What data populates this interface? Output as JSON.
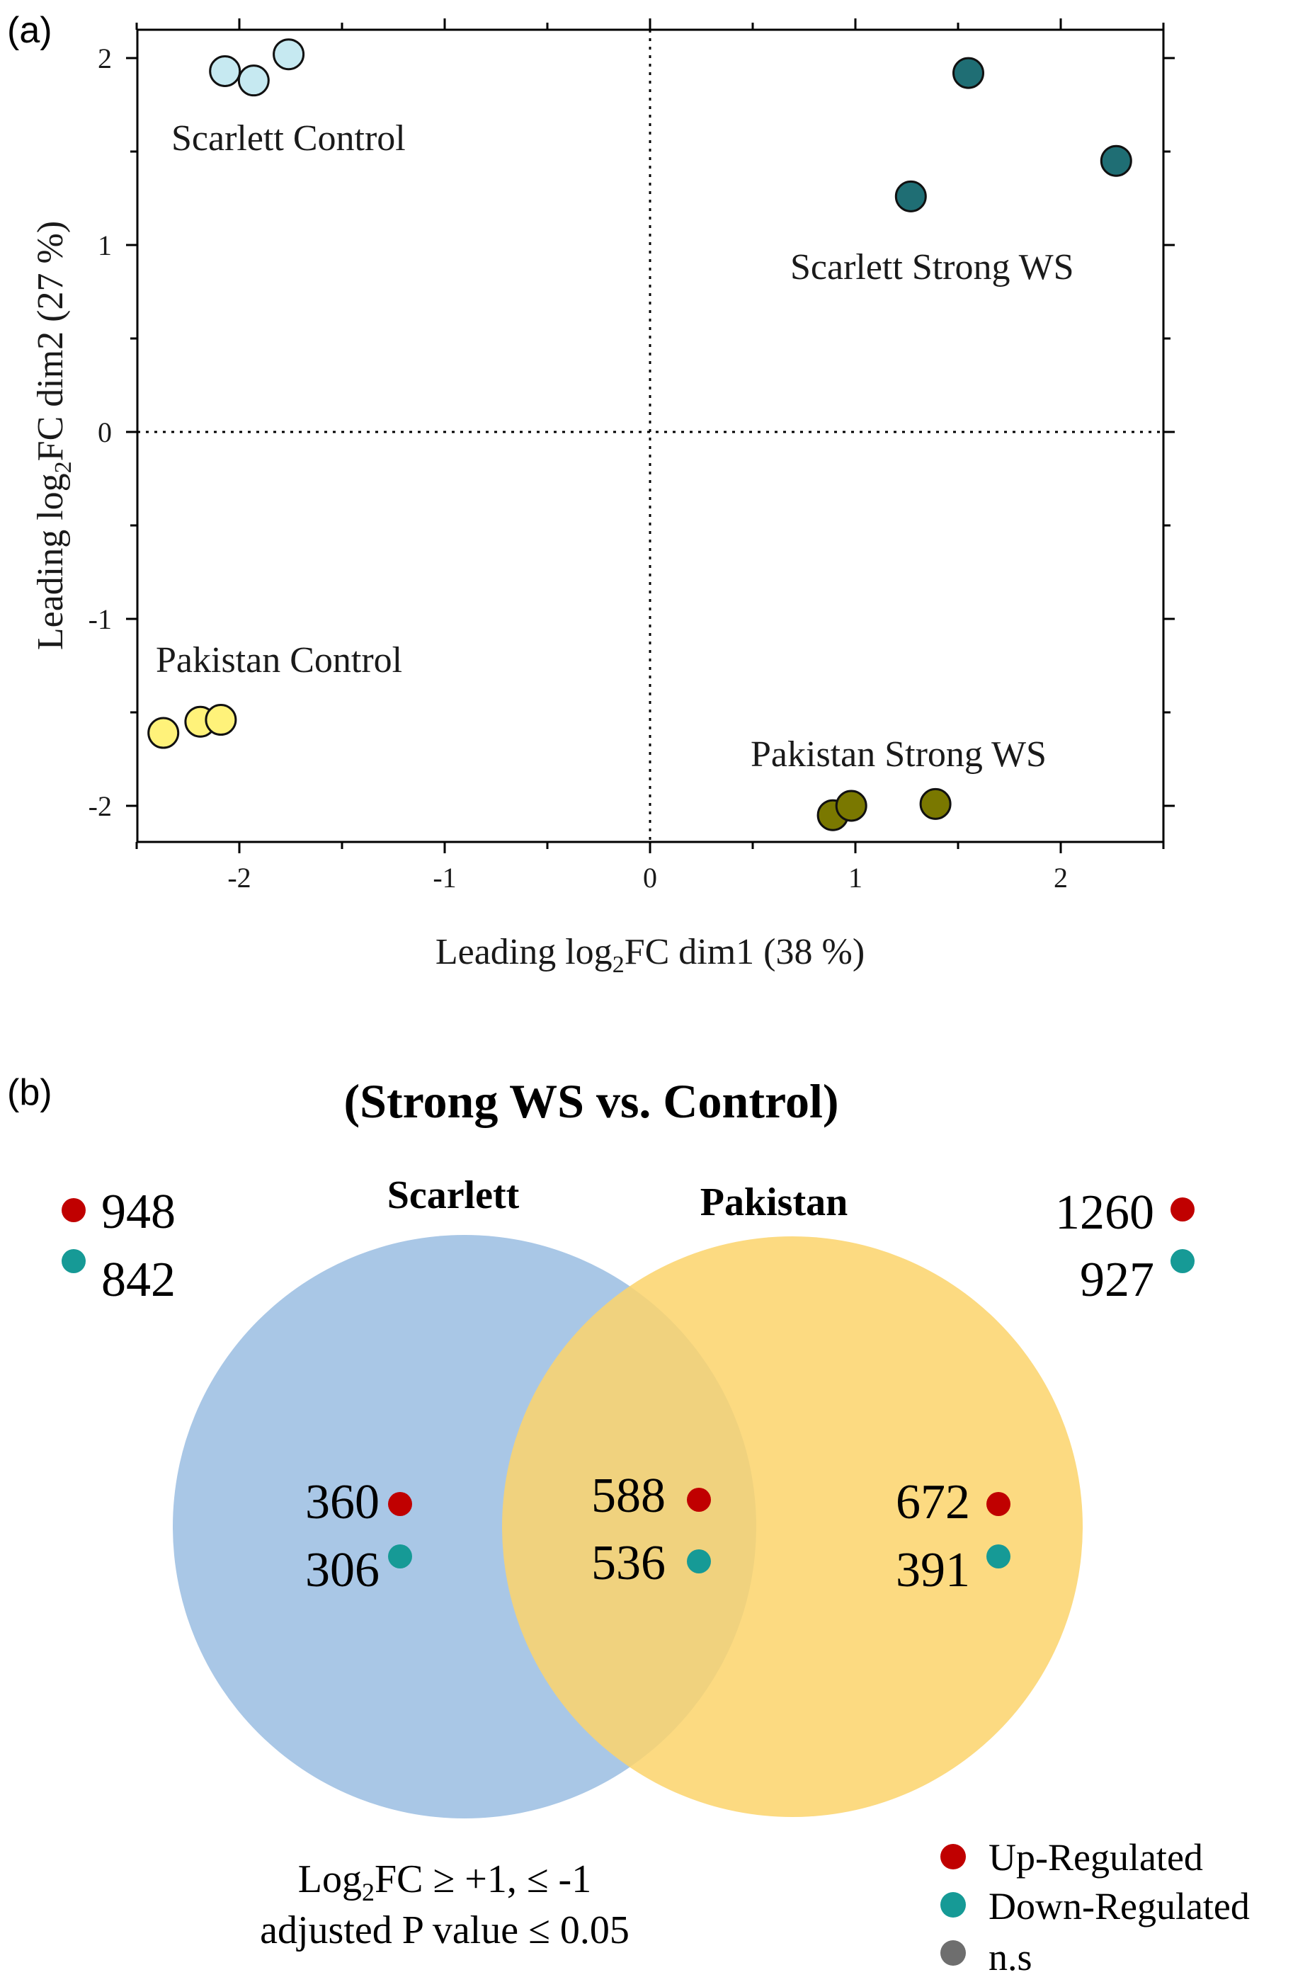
{
  "panel_a": {
    "label": "(a)",
    "xlabel_prefix": "Leading log",
    "xlabel_sub": "2",
    "xlabel_suffix": "FC dim1 (38 %)",
    "ylabel_prefix": "Leading log",
    "ylabel_sub": "2",
    "ylabel_suffix": "FC dim2 (27 %)",
    "group_labels": [
      "Scarlett Control",
      "Scarlett Strong WS",
      "Pakistan Control",
      "Pakistan Strong WS"
    ]
  },
  "panel_b": {
    "label": "(b)",
    "title": "(Strong WS vs. Control)",
    "scarlett_label": "Scarlett",
    "pakistan_label": "Pakistan",
    "scarlett_total_up": "948",
    "scarlett_total_down": "842",
    "pakistan_total_up": "1260",
    "pakistan_total_down": "927",
    "scarlett_only_up": "360",
    "scarlett_only_down": "306",
    "shared_up": "588",
    "shared_down": "536",
    "pakistan_only_up": "672",
    "pakistan_only_down": "391",
    "criteria_line1_prefix": "Log",
    "criteria_line1_sub": "2",
    "criteria_line1_suffix": "FC ≥ +1, ≤ -1",
    "criteria_line2": "adjusted P value ≤ 0.05",
    "legend": [
      "Up-Regulated",
      "Down-Regulated",
      "n.s"
    ],
    "colors": {
      "up": "#c00000",
      "down": "#169a96",
      "ns": "#6e6e6e",
      "scarlett_circle": "#a9c7e6",
      "pakistan_circle": "#fcd46c"
    }
  },
  "chart_data": {
    "type": "scatter",
    "xlabel": "Leading log2FC dim1 (38 %)",
    "ylabel": "Leading log2FC dim2 (27 %)",
    "xlim": [
      -2.5,
      2.5
    ],
    "ylim": [
      -2.2,
      2.1
    ],
    "xticks": [
      -2,
      -1,
      0,
      1,
      2
    ],
    "yticks": [
      -2,
      -1,
      0,
      1,
      2
    ],
    "reference_lines": {
      "x": 0,
      "y": 0,
      "style": "dotted"
    },
    "series": [
      {
        "name": "Scarlett Control",
        "color": "#c6e9f1",
        "points": [
          [
            -2.07,
            1.93
          ],
          [
            -1.93,
            1.88
          ],
          [
            -1.76,
            2.02
          ]
        ]
      },
      {
        "name": "Scarlett Strong WS",
        "color": "#1f6e74",
        "points": [
          [
            1.55,
            1.92
          ],
          [
            2.27,
            1.45
          ],
          [
            1.27,
            1.26
          ]
        ]
      },
      {
        "name": "Pakistan Control",
        "color": "#fff27a",
        "points": [
          [
            -2.37,
            -1.61
          ],
          [
            -2.19,
            -1.55
          ],
          [
            -2.09,
            -1.54
          ]
        ]
      },
      {
        "name": "Pakistan Strong WS",
        "color": "#7a7800",
        "points": [
          [
            0.89,
            -2.05
          ],
          [
            0.98,
            -2.0
          ],
          [
            1.39,
            -1.99
          ]
        ]
      }
    ]
  }
}
